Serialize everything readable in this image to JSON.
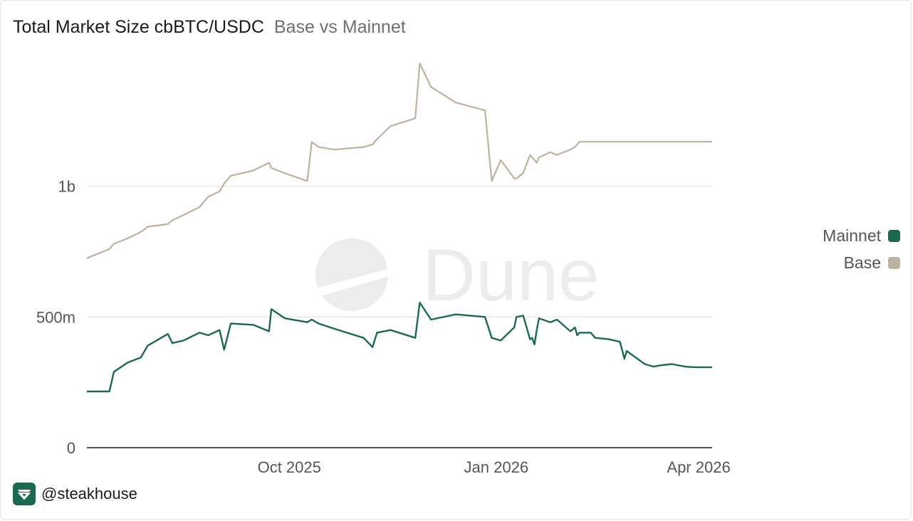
{
  "title": "Total Market Size cbBTC/USDC",
  "subtitle": "Base vs Mainnet",
  "footer": {
    "handle": "@steakhouse",
    "logo_icon": "steakhouse-logo-icon"
  },
  "watermark": {
    "text": "Dune",
    "icon": "dune-logo-icon"
  },
  "colors": {
    "mainnet": "#1a6a50",
    "base": "#bcb29f",
    "grid": "#e6e6e6",
    "axis": "#1b1b1b",
    "watermark": "#ececec"
  },
  "chart_data": {
    "type": "line",
    "ylim": [
      0,
      1500000000
    ],
    "y_ticks": [
      {
        "value": 0,
        "label": "0"
      },
      {
        "value": 500000000,
        "label": "500m"
      },
      {
        "value": 1000000000,
        "label": "1b"
      }
    ],
    "x_ticks": [
      {
        "date": "2025-10-01",
        "label": "Oct 2025"
      },
      {
        "date": "2026-01-01",
        "label": "Jan 2026"
      },
      {
        "date": "2026-04-01",
        "label": "Apr 2026"
      }
    ],
    "grid": true,
    "legend_position": "right",
    "x": [
      "2025-07-03",
      "2025-07-13",
      "2025-07-15",
      "2025-07-21",
      "2025-07-27",
      "2025-07-30",
      "2025-08-08",
      "2025-08-10",
      "2025-08-15",
      "2025-08-22",
      "2025-08-26",
      "2025-08-31",
      "2025-09-02",
      "2025-09-05",
      "2025-09-15",
      "2025-09-22",
      "2025-09-23",
      "2025-09-29",
      "2025-10-09",
      "2025-10-11",
      "2025-10-14",
      "2025-10-21",
      "2025-11-03",
      "2025-11-07",
      "2025-11-09",
      "2025-11-15",
      "2025-11-26",
      "2025-11-28",
      "2025-12-03",
      "2025-12-14",
      "2025-12-27",
      "2025-12-30",
      "2026-01-03",
      "2026-01-09",
      "2026-01-10",
      "2026-01-13",
      "2026-01-16",
      "2026-01-17",
      "2026-01-18",
      "2026-01-19",
      "2026-01-20",
      "2026-01-25",
      "2026-01-28",
      "2026-02-03",
      "2026-02-05",
      "2026-02-06",
      "2026-02-07",
      "2026-02-12",
      "2026-02-13",
      "2026-02-14",
      "2026-02-20",
      "2026-02-25",
      "2026-02-27",
      "2026-02-28",
      "2026-03-08",
      "2026-03-12",
      "2026-03-15",
      "2026-03-20",
      "2026-03-26",
      "2026-03-30",
      "2026-04-01",
      "2026-04-05",
      "2026-04-07"
    ],
    "series": [
      {
        "name": "Mainnet",
        "color": "#1a6a50",
        "values": [
          215000000,
          215000000,
          290000000,
          325000000,
          345000000,
          390000000,
          435000000,
          400000000,
          410000000,
          440000000,
          430000000,
          450000000,
          375000000,
          475000000,
          470000000,
          445000000,
          530000000,
          495000000,
          480000000,
          490000000,
          475000000,
          455000000,
          420000000,
          385000000,
          440000000,
          450000000,
          420000000,
          555000000,
          490000000,
          510000000,
          500000000,
          420000000,
          410000000,
          460000000,
          500000000,
          505000000,
          415000000,
          420000000,
          395000000,
          450000000,
          495000000,
          480000000,
          490000000,
          445000000,
          460000000,
          430000000,
          440000000,
          440000000,
          430000000,
          420000000,
          415000000,
          405000000,
          340000000,
          370000000,
          320000000,
          310000000,
          315000000,
          320000000,
          310000000,
          308000000,
          308000000,
          308000000,
          308000000
        ]
      },
      {
        "name": "Base",
        "color": "#bcb29f",
        "values": [
          725000000,
          760000000,
          780000000,
          800000000,
          825000000,
          845000000,
          855000000,
          870000000,
          890000000,
          920000000,
          960000000,
          980000000,
          1010000000,
          1040000000,
          1060000000,
          1090000000,
          1070000000,
          1050000000,
          1020000000,
          1170000000,
          1150000000,
          1140000000,
          1150000000,
          1160000000,
          1180000000,
          1230000000,
          1260000000,
          1470000000,
          1380000000,
          1320000000,
          1290000000,
          1020000000,
          1100000000,
          1030000000,
          1030000000,
          1050000000,
          1120000000,
          1110000000,
          1100000000,
          1090000000,
          1110000000,
          1130000000,
          1120000000,
          1140000000,
          1150000000,
          1160000000,
          1170000000,
          1170000000,
          1170000000,
          1170000000,
          1170000000,
          1170000000,
          1170000000,
          1170000000,
          1170000000,
          1170000000,
          1170000000,
          1170000000,
          1170000000,
          1170000000,
          1170000000,
          1170000000,
          1170000000
        ]
      }
    ]
  }
}
